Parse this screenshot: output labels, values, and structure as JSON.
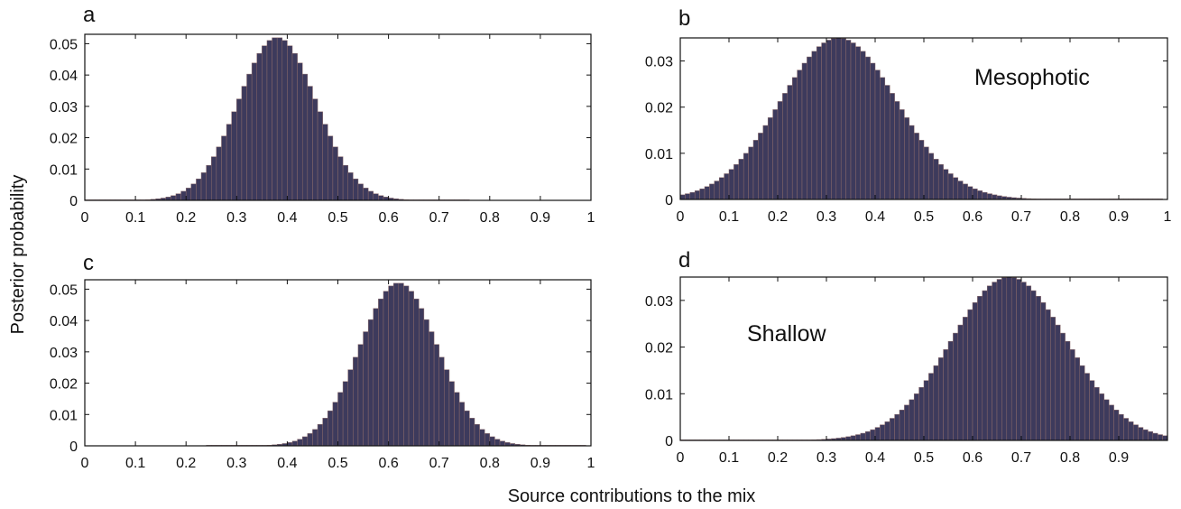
{
  "colors": {
    "bar_fill": "#3d3a5c",
    "bar_edge": "#8a6a6a",
    "axis": "#111111"
  },
  "figure": {
    "ylabel": "Posterior probability",
    "xlabel": "Source contributions to the mix"
  },
  "chart_data": [
    {
      "panel": "a",
      "type": "bar",
      "annotation": "",
      "xlim": [
        0,
        1
      ],
      "ylim": [
        0,
        0.053
      ],
      "xticks": [
        "0",
        "0.1",
        "0.2",
        "0.3",
        "0.4",
        "0.5",
        "0.6",
        "0.7",
        "0.8",
        "0.9",
        "1"
      ],
      "yticks": [
        "0",
        "0.01",
        "0.02",
        "0.03",
        "0.04",
        "0.05"
      ],
      "ytick_values": [
        0,
        0.01,
        0.02,
        0.03,
        0.04,
        0.05
      ],
      "bin_width": 0.01,
      "series": [
        {
          "mean": 0.38,
          "sd": 0.077,
          "peak": 0.052,
          "min_x": 0.0,
          "max_x": 0.76
        }
      ]
    },
    {
      "panel": "b",
      "type": "bar",
      "annotation": "Mesophotic",
      "xlim": [
        0,
        1
      ],
      "ylim": [
        0,
        0.035
      ],
      "xticks": [
        "0",
        "0.1",
        "0.2",
        "0.3",
        "0.4",
        "0.5",
        "0.6",
        "0.7",
        "0.8",
        "0.9",
        "1"
      ],
      "yticks": [
        "0",
        "0.01",
        "0.02",
        "0.03"
      ],
      "ytick_values": [
        0,
        0.01,
        0.02,
        0.03
      ],
      "bin_width": 0.01,
      "series": [
        {
          "mean": 0.325,
          "sd": 0.12,
          "peak": 0.035,
          "min_x": 0.0,
          "max_x": 0.99
        }
      ]
    },
    {
      "panel": "c",
      "type": "bar",
      "annotation": "",
      "xlim": [
        0,
        1
      ],
      "ylim": [
        0,
        0.053
      ],
      "xticks": [
        "0",
        "0.1",
        "0.2",
        "0.3",
        "0.4",
        "0.5",
        "0.6",
        "0.7",
        "0.8",
        "0.9",
        "1"
      ],
      "yticks": [
        "0",
        "0.01",
        "0.02",
        "0.03",
        "0.04",
        "0.05"
      ],
      "ytick_values": [
        0,
        0.01,
        0.02,
        0.03,
        0.04,
        0.05
      ],
      "bin_width": 0.01,
      "series": [
        {
          "mean": 0.62,
          "sd": 0.077,
          "peak": 0.052,
          "min_x": 0.24,
          "max_x": 0.99
        }
      ]
    },
    {
      "panel": "d",
      "type": "bar",
      "annotation": "Shallow",
      "xlim": [
        0,
        1
      ],
      "ylim": [
        0,
        0.035
      ],
      "xticks": [
        "0",
        "0.1",
        "0.2",
        "0.3",
        "0.4",
        "0.5",
        "0.6",
        "0.7",
        "0.8",
        "0.9"
      ],
      "yticks": [
        "0",
        "0.01",
        "0.02",
        "0.03"
      ],
      "ytick_values": [
        0,
        0.01,
        0.02,
        0.03
      ],
      "bin_width": 0.01,
      "series": [
        {
          "mean": 0.675,
          "sd": 0.12,
          "peak": 0.035,
          "min_x": 0.0,
          "max_x": 1.0
        }
      ]
    }
  ]
}
